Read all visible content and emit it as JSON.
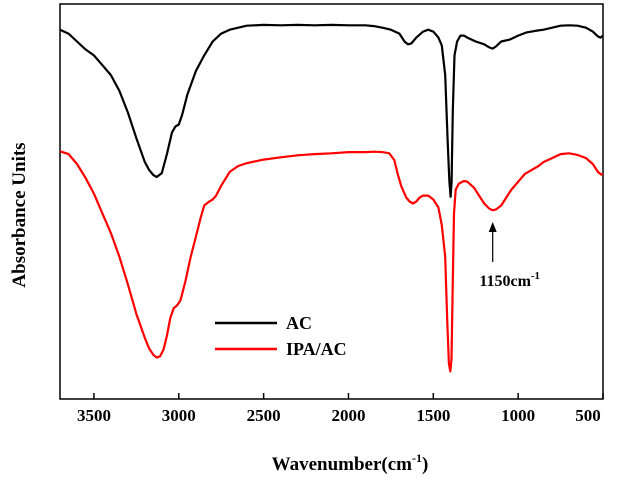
{
  "chart_data": {
    "type": "line",
    "xlabel": "Wavenumber(cm",
    "xlabel_sup": "-1",
    "xlabel_close": ")",
    "ylabel": "Absorbance Units",
    "xlim": [
      3700,
      500
    ],
    "x_reversed": true,
    "ylim": [
      0,
      1
    ],
    "xticks": [
      3500,
      3000,
      2500,
      2000,
      1500,
      1000,
      500
    ],
    "y_ticks_shown": false,
    "grid": false,
    "legend_position": "lower-left",
    "annotation": {
      "text": "1150cm",
      "sup": "-1",
      "x": 1150,
      "arrow": "up"
    },
    "series": [
      {
        "name": "AC",
        "color": "#000000",
        "points": [
          [
            3700,
            0.935
          ],
          [
            3650,
            0.925
          ],
          [
            3600,
            0.905
          ],
          [
            3550,
            0.885
          ],
          [
            3500,
            0.87
          ],
          [
            3450,
            0.845
          ],
          [
            3400,
            0.82
          ],
          [
            3350,
            0.78
          ],
          [
            3300,
            0.725
          ],
          [
            3250,
            0.66
          ],
          [
            3200,
            0.6
          ],
          [
            3175,
            0.58
          ],
          [
            3150,
            0.567
          ],
          [
            3130,
            0.562
          ],
          [
            3100,
            0.572
          ],
          [
            3070,
            0.62
          ],
          [
            3040,
            0.675
          ],
          [
            3020,
            0.69
          ],
          [
            3000,
            0.695
          ],
          [
            2980,
            0.72
          ],
          [
            2950,
            0.77
          ],
          [
            2900,
            0.83
          ],
          [
            2850,
            0.87
          ],
          [
            2800,
            0.905
          ],
          [
            2750,
            0.925
          ],
          [
            2700,
            0.935
          ],
          [
            2650,
            0.94
          ],
          [
            2600,
            0.945
          ],
          [
            2500,
            0.947
          ],
          [
            2400,
            0.946
          ],
          [
            2300,
            0.947
          ],
          [
            2200,
            0.946
          ],
          [
            2100,
            0.947
          ],
          [
            2000,
            0.946
          ],
          [
            1900,
            0.946
          ],
          [
            1850,
            0.944
          ],
          [
            1800,
            0.94
          ],
          [
            1750,
            0.935
          ],
          [
            1700,
            0.925
          ],
          [
            1670,
            0.905
          ],
          [
            1650,
            0.898
          ],
          [
            1630,
            0.9
          ],
          [
            1600,
            0.915
          ],
          [
            1560,
            0.93
          ],
          [
            1530,
            0.935
          ],
          [
            1500,
            0.93
          ],
          [
            1470,
            0.915
          ],
          [
            1450,
            0.895
          ],
          [
            1430,
            0.82
          ],
          [
            1415,
            0.65
          ],
          [
            1405,
            0.55
          ],
          [
            1398,
            0.512
          ],
          [
            1392,
            0.55
          ],
          [
            1385,
            0.73
          ],
          [
            1375,
            0.87
          ],
          [
            1360,
            0.905
          ],
          [
            1340,
            0.92
          ],
          [
            1320,
            0.92
          ],
          [
            1300,
            0.915
          ],
          [
            1250,
            0.905
          ],
          [
            1200,
            0.898
          ],
          [
            1170,
            0.89
          ],
          [
            1150,
            0.887
          ],
          [
            1130,
            0.893
          ],
          [
            1100,
            0.905
          ],
          [
            1050,
            0.91
          ],
          [
            1000,
            0.92
          ],
          [
            950,
            0.928
          ],
          [
            900,
            0.932
          ],
          [
            850,
            0.935
          ],
          [
            800,
            0.94
          ],
          [
            750,
            0.945
          ],
          [
            700,
            0.946
          ],
          [
            650,
            0.945
          ],
          [
            600,
            0.94
          ],
          [
            560,
            0.93
          ],
          [
            530,
            0.918
          ],
          [
            515,
            0.915
          ],
          [
            500,
            0.92
          ]
        ]
      },
      {
        "name": "IPA/AC",
        "color": "#ff0000",
        "points": [
          [
            3700,
            0.627
          ],
          [
            3650,
            0.62
          ],
          [
            3600,
            0.595
          ],
          [
            3550,
            0.56
          ],
          [
            3500,
            0.52
          ],
          [
            3450,
            0.47
          ],
          [
            3400,
            0.42
          ],
          [
            3350,
            0.36
          ],
          [
            3300,
            0.29
          ],
          [
            3250,
            0.215
          ],
          [
            3200,
            0.155
          ],
          [
            3175,
            0.128
          ],
          [
            3150,
            0.112
          ],
          [
            3130,
            0.105
          ],
          [
            3110,
            0.108
          ],
          [
            3090,
            0.125
          ],
          [
            3070,
            0.16
          ],
          [
            3050,
            0.205
          ],
          [
            3030,
            0.23
          ],
          [
            3010,
            0.237
          ],
          [
            2990,
            0.25
          ],
          [
            2960,
            0.3
          ],
          [
            2930,
            0.36
          ],
          [
            2900,
            0.41
          ],
          [
            2870,
            0.46
          ],
          [
            2850,
            0.49
          ],
          [
            2820,
            0.5
          ],
          [
            2800,
            0.505
          ],
          [
            2780,
            0.515
          ],
          [
            2750,
            0.54
          ],
          [
            2700,
            0.575
          ],
          [
            2650,
            0.59
          ],
          [
            2600,
            0.597
          ],
          [
            2500,
            0.606
          ],
          [
            2400,
            0.612
          ],
          [
            2300,
            0.617
          ],
          [
            2200,
            0.62
          ],
          [
            2100,
            0.622
          ],
          [
            2000,
            0.625
          ],
          [
            1900,
            0.625
          ],
          [
            1850,
            0.626
          ],
          [
            1800,
            0.625
          ],
          [
            1760,
            0.622
          ],
          [
            1730,
            0.605
          ],
          [
            1710,
            0.57
          ],
          [
            1690,
            0.54
          ],
          [
            1660,
            0.51
          ],
          [
            1640,
            0.5
          ],
          [
            1620,
            0.495
          ],
          [
            1600,
            0.5
          ],
          [
            1580,
            0.51
          ],
          [
            1560,
            0.515
          ],
          [
            1530,
            0.515
          ],
          [
            1500,
            0.505
          ],
          [
            1470,
            0.485
          ],
          [
            1450,
            0.44
          ],
          [
            1430,
            0.36
          ],
          [
            1418,
            0.2
          ],
          [
            1408,
            0.09
          ],
          [
            1400,
            0.07
          ],
          [
            1393,
            0.1
          ],
          [
            1385,
            0.3
          ],
          [
            1378,
            0.47
          ],
          [
            1368,
            0.53
          ],
          [
            1350,
            0.545
          ],
          [
            1320,
            0.552
          ],
          [
            1300,
            0.55
          ],
          [
            1260,
            0.535
          ],
          [
            1230,
            0.515
          ],
          [
            1200,
            0.495
          ],
          [
            1170,
            0.482
          ],
          [
            1150,
            0.478
          ],
          [
            1130,
            0.48
          ],
          [
            1100,
            0.49
          ],
          [
            1070,
            0.51
          ],
          [
            1040,
            0.53
          ],
          [
            1000,
            0.55
          ],
          [
            960,
            0.57
          ],
          [
            920,
            0.58
          ],
          [
            880,
            0.59
          ],
          [
            850,
            0.6
          ],
          [
            800,
            0.61
          ],
          [
            750,
            0.62
          ],
          [
            700,
            0.622
          ],
          [
            650,
            0.618
          ],
          [
            600,
            0.61
          ],
          [
            560,
            0.595
          ],
          [
            530,
            0.575
          ],
          [
            510,
            0.568
          ],
          [
            500,
            0.57
          ]
        ]
      }
    ]
  }
}
